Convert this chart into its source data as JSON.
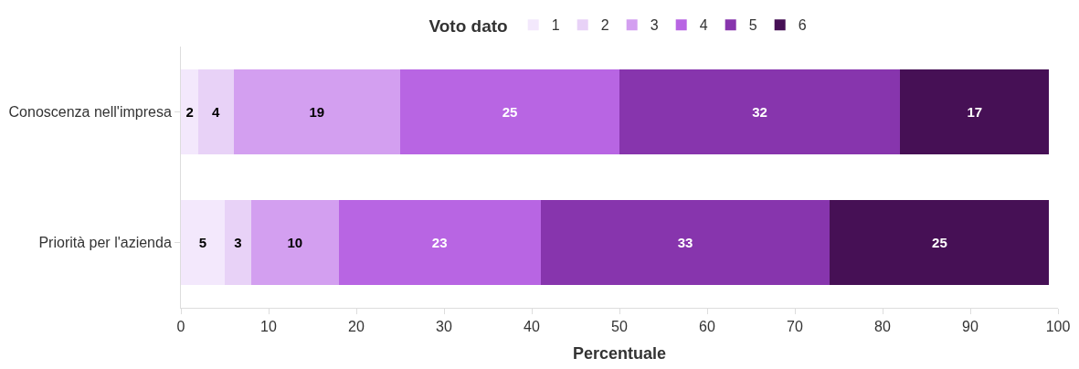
{
  "chart_data": {
    "type": "bar",
    "orientation": "horizontal",
    "stacked": true,
    "xlabel": "Percentuale",
    "legend_title": "Voto dato",
    "legend": "top",
    "categories": [
      "Conoscenza nell'impresa",
      "Priorità per l'azienda"
    ],
    "series": [
      {
        "name": "1",
        "color": "#f3e8fc",
        "values": [
          2,
          5
        ]
      },
      {
        "name": "2",
        "color": "#e8d2f7",
        "values": [
          4,
          3
        ]
      },
      {
        "name": "3",
        "color": "#d39ff0",
        "values": [
          19,
          10
        ]
      },
      {
        "name": "4",
        "color": "#b865e3",
        "values": [
          25,
          23
        ]
      },
      {
        "name": "5",
        "color": "#8735ad",
        "values": [
          32,
          33
        ]
      },
      {
        "name": "6",
        "color": "#461055",
        "values": [
          17,
          25
        ]
      }
    ],
    "xlim": [
      0,
      100
    ],
    "xticks": [
      0,
      10,
      20,
      30,
      40,
      50,
      60,
      70,
      80,
      90,
      100
    ],
    "grid": false,
    "data_labels": true
  }
}
